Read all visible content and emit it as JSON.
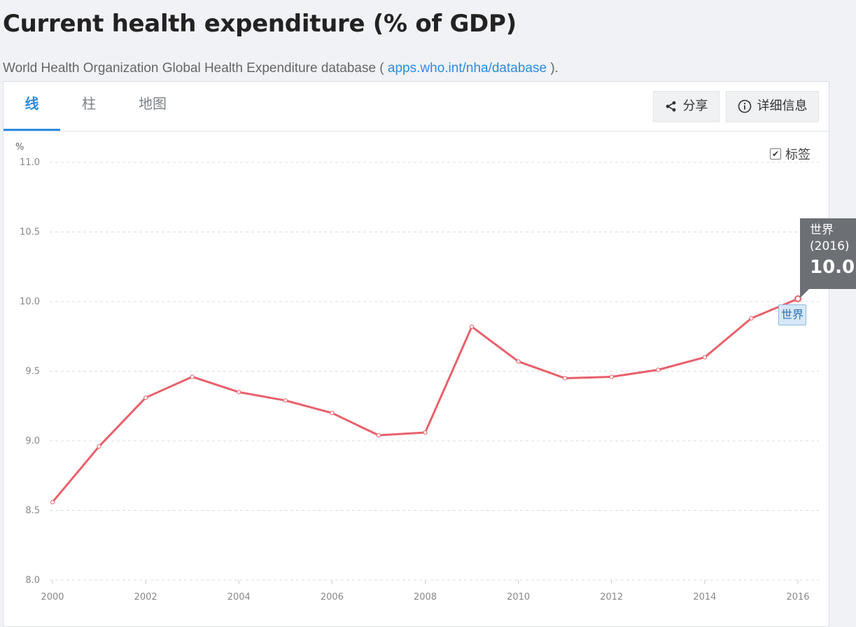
{
  "page": {
    "title": "Current health expenditure (% of GDP)",
    "source_prefix": "World Health Organization Global Health Expenditure database (",
    "source_link": "apps.who.int/nha/database",
    "source_suffix": ")."
  },
  "tabs": [
    {
      "label": "线",
      "active": true
    },
    {
      "label": "柱",
      "active": false
    },
    {
      "label": "地图",
      "active": false
    }
  ],
  "toolbar": {
    "share_label": "分享",
    "details_label": "详细信息",
    "share_icon": "share-icon",
    "details_icon": "info-icon"
  },
  "labels_toggle": {
    "label": "标签",
    "checked": true
  },
  "tooltip": {
    "series": "世界",
    "year": "(2016)",
    "value": "10.0"
  },
  "series_tag": "世界",
  "colors": {
    "line": "#e8606a",
    "accent": "#2e8be0",
    "tooltip_bg": "#6c7075"
  },
  "chart_data": {
    "type": "line",
    "ylabel": "%",
    "ylim": [
      8.0,
      11.0
    ],
    "yticks": [
      "8.0",
      "8.5",
      "9.0",
      "9.5",
      "10.0",
      "10.5",
      "11.0"
    ],
    "xlim": [
      2000,
      2016
    ],
    "xticks": [
      "2000",
      "2002",
      "2004",
      "2006",
      "2008",
      "2010",
      "2012",
      "2014",
      "2016"
    ],
    "grid": true,
    "series": [
      {
        "name": "世界",
        "x": [
          2000,
          2001,
          2002,
          2003,
          2004,
          2005,
          2006,
          2007,
          2008,
          2009,
          2010,
          2011,
          2012,
          2013,
          2014,
          2015,
          2016
        ],
        "values": [
          8.56,
          8.96,
          9.31,
          9.46,
          9.35,
          9.29,
          9.2,
          9.04,
          9.06,
          9.82,
          9.57,
          9.45,
          9.46,
          9.51,
          9.6,
          9.88,
          10.02
        ]
      }
    ]
  }
}
